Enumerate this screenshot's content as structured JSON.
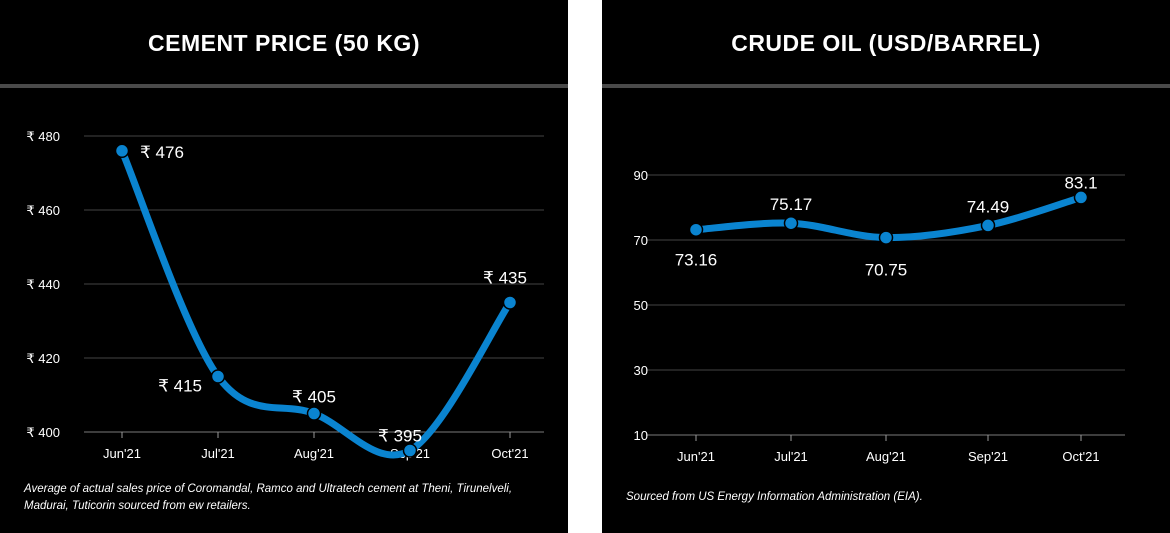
{
  "chart_data": [
    {
      "type": "line",
      "title": "CEMENT PRICE (50 KG)",
      "categories": [
        "Jun'21",
        "Jul'21",
        "Aug'21",
        "Sep'21",
        "Oct'21"
      ],
      "values": [
        476,
        415,
        405,
        395,
        435
      ],
      "data_labels": [
        "₹ 476",
        "₹ 415",
        "₹ 405",
        "₹ 395",
        "₹ 435"
      ],
      "y_ticks": [
        400,
        420,
        440,
        460,
        480
      ],
      "y_tick_labels": [
        "₹ 400",
        "₹ 420",
        "₹ 440",
        "₹ 460",
        "₹ 480"
      ],
      "ylim": [
        400,
        480
      ],
      "xlabel": "",
      "ylabel": "",
      "grid": true,
      "line_color": "#0a84d0",
      "note": "Average of actual sales price of Coromandal, Ramco and Ultratech cement at Theni, Tirunelveli, Madurai, Tuticorin sourced from ew retailers."
    },
    {
      "type": "line",
      "title": "CRUDE OIL (USD/BARREL)",
      "categories": [
        "Jun'21",
        "Jul'21",
        "Aug'21",
        "Sep'21",
        "Oct'21"
      ],
      "values": [
        73.16,
        75.17,
        70.75,
        74.49,
        83.1
      ],
      "data_labels": [
        "73.16",
        "75.17",
        "70.75",
        "74.49",
        "83.1"
      ],
      "y_ticks": [
        10,
        30,
        50,
        70,
        90
      ],
      "y_tick_labels": [
        "10",
        "30",
        "50",
        "70",
        "90"
      ],
      "ylim": [
        10,
        90
      ],
      "xlabel": "",
      "ylabel": "",
      "grid": true,
      "line_color": "#0a84d0",
      "note": "Sourced from US Energy Information Administration (EIA)."
    }
  ],
  "colors": {
    "panel_background": "#000000",
    "gridline": "#444444",
    "series": "#0a84d0",
    "text": "#ffffff"
  }
}
